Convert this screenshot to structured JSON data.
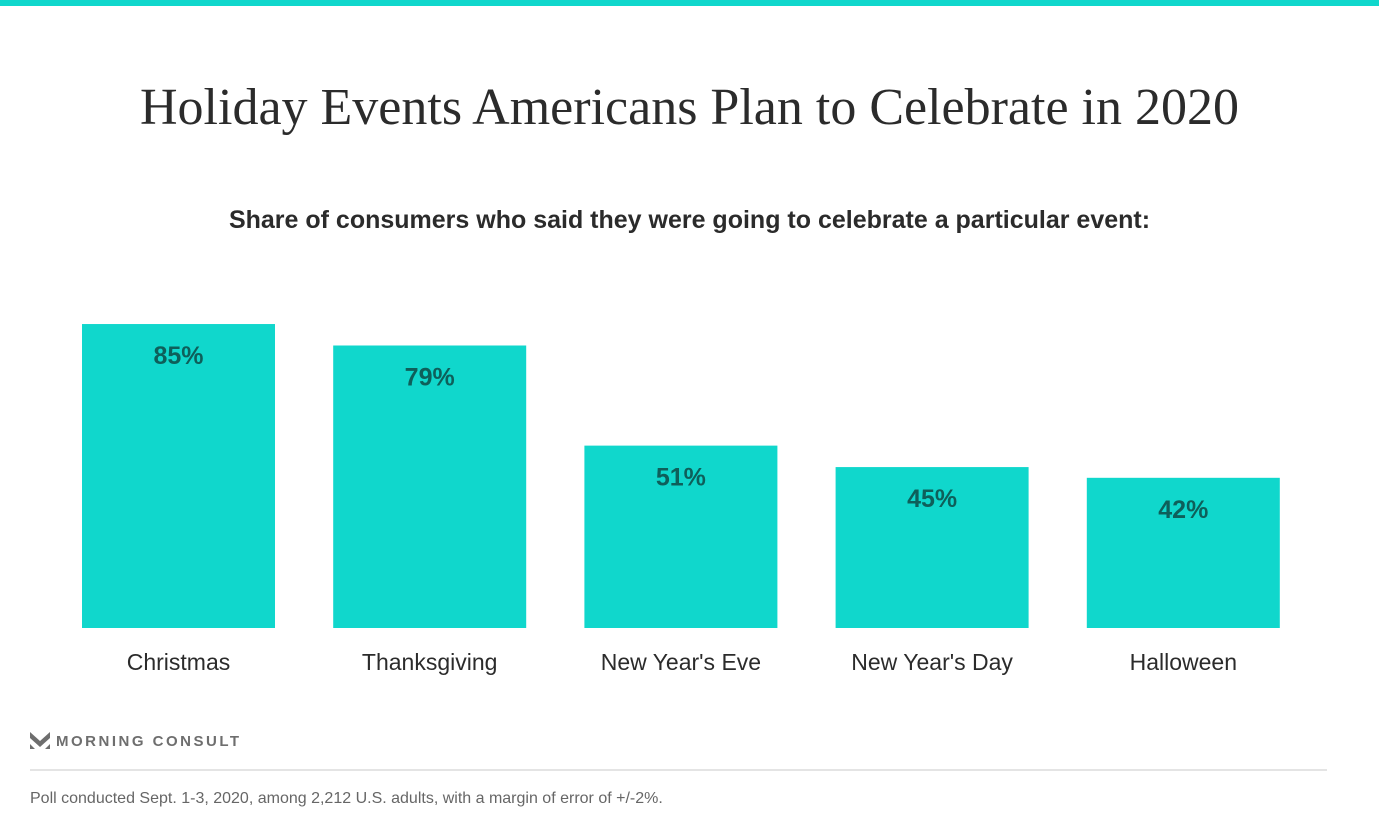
{
  "chart_data": {
    "type": "bar",
    "title": "Holiday Events Americans Plan to Celebrate in 2020",
    "subtitle": "Share of consumers who said they were going to celebrate a particular event:",
    "categories": [
      "Christmas",
      "Thanksgiving",
      "New Year's Eve",
      "New Year's Day",
      "Halloween"
    ],
    "values": [
      85,
      79,
      51,
      45,
      42
    ],
    "data_labels": [
      "85%",
      "79%",
      "51%",
      "45%",
      "42%"
    ],
    "xlabel": "",
    "ylabel": "",
    "ylim": [
      0,
      100
    ],
    "grid": false,
    "colors": {
      "bar": "#10d7cc",
      "label": "#0e5f5a",
      "accent": "#10d7cc"
    }
  },
  "branding": {
    "logo_text": "MORNING CONSULT"
  },
  "footnote": "Poll conducted Sept. 1-3, 2020, among 2,212 U.S. adults, with a margin of error of +/-2%."
}
